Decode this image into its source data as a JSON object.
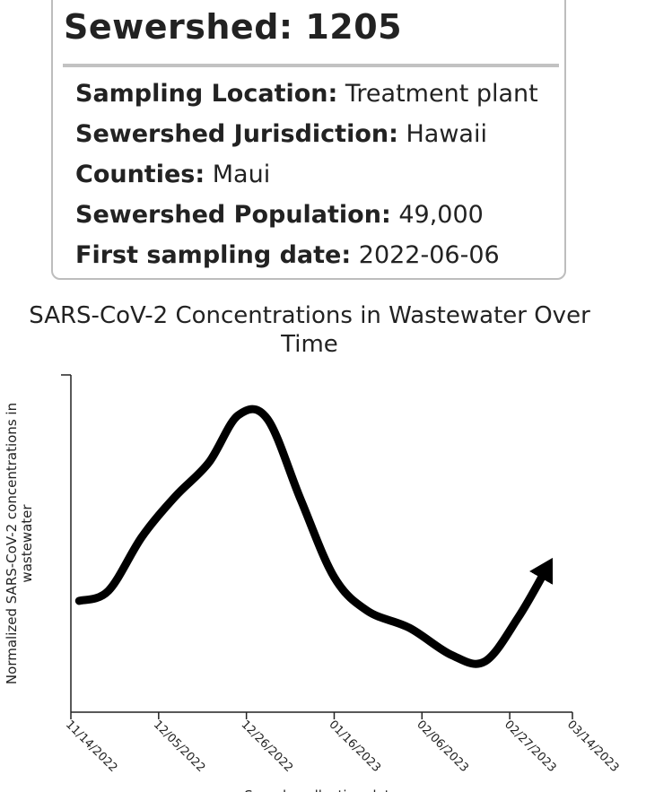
{
  "card": {
    "title": "Sewershed: 1205",
    "rows": [
      {
        "label": "Sampling Location:",
        "value": "Treatment plant"
      },
      {
        "label": "Sewershed Jurisdiction:",
        "value": "Hawaii"
      },
      {
        "label": "Counties:",
        "value": "Maui"
      },
      {
        "label": "Sewershed Population:",
        "value": "49,000"
      },
      {
        "label": "First sampling date:",
        "value": "2022-06-06"
      }
    ]
  },
  "chart_data": {
    "type": "line",
    "title": "SARS-CoV-2 Concentrations in Wastewater Over Time",
    "ylabel_lines": [
      "Normalized SARS-CoV-2 concentrations in",
      "wastewater"
    ],
    "xlabel": "Sample collection date",
    "x_ticks": [
      "11/14/2022",
      "12/05/2022",
      "12/26/2022",
      "01/16/2023",
      "02/06/2023",
      "02/27/2023",
      "03/14/2023"
    ],
    "x_range": [
      "2022-11-14",
      "2023-03-14"
    ],
    "y_range": [
      0,
      1
    ],
    "y_tick_labels": false,
    "grid": false,
    "line_color": "#000000",
    "end_marker": "arrow",
    "series": [
      {
        "x": [
          "2022-11-16",
          "2022-11-23",
          "2022-12-01",
          "2022-12-09",
          "2022-12-17",
          "2022-12-24",
          "2022-12-31",
          "2023-01-08",
          "2023-01-16",
          "2023-01-24",
          "2023-02-03",
          "2023-02-13",
          "2023-02-21",
          "2023-03-01",
          "2023-03-08"
        ],
        "values": [
          0.33,
          0.36,
          0.52,
          0.64,
          0.74,
          0.88,
          0.87,
          0.63,
          0.4,
          0.3,
          0.25,
          0.17,
          0.15,
          0.28,
          0.43
        ]
      }
    ]
  }
}
